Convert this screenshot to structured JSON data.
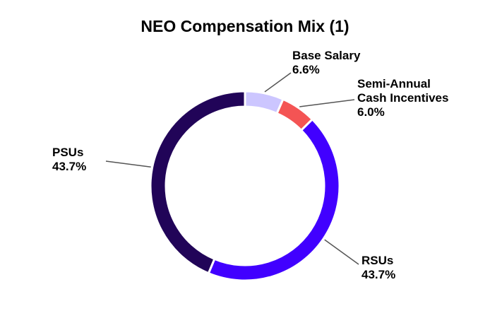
{
  "chart_data": {
    "type": "pie",
    "title": "NEO Compensation Mix (1)",
    "donut": true,
    "slices": [
      {
        "label_lines": [
          "Base Salary"
        ],
        "value": 6.6,
        "value_text": "6.6%",
        "color": "#ccc6ff"
      },
      {
        "label_lines": [
          "Semi-Annual",
          "Cash Incentives"
        ],
        "value": 6.0,
        "value_text": "6.0%",
        "color": "#f45454"
      },
      {
        "label_lines": [
          "RSUs"
        ],
        "value": 43.7,
        "value_text": "43.7%",
        "color": "#4100ff"
      },
      {
        "label_lines": [
          "PSUs"
        ],
        "value": 43.7,
        "value_text": "43.7%",
        "color": "#210458"
      }
    ]
  }
}
